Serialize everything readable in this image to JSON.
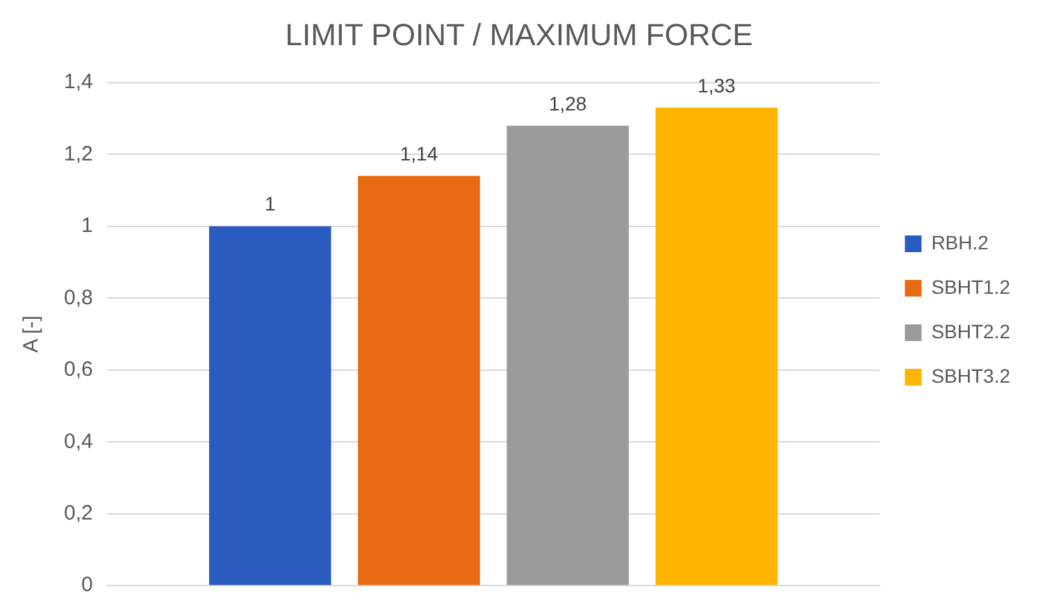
{
  "chart_data": {
    "type": "bar",
    "title": "LIMIT POINT / MAXIMUM FORCE",
    "ylabel": "A [-]",
    "categories": [
      null
    ],
    "series": [
      {
        "name": "RBH.2",
        "color": "#2a5cbf",
        "values": [
          1
        ],
        "value_labels": [
          "1"
        ]
      },
      {
        "name": "SBHT1.2",
        "color": "#e86a12",
        "values": [
          1.14
        ],
        "value_labels": [
          "1,14"
        ]
      },
      {
        "name": "SBHT2.2",
        "color": "#9b9b9b",
        "values": [
          1.28
        ],
        "value_labels": [
          "1,28"
        ]
      },
      {
        "name": "SBHT3.2",
        "color": "#ffb400",
        "values": [
          1.33
        ],
        "value_labels": [
          "1,33"
        ]
      }
    ],
    "ylim": [
      0,
      1.4
    ],
    "yticks": [
      0,
      {
        "value": 0.2,
        "label": "0,2"
      },
      {
        "value": 0.4,
        "label": "0,4"
      },
      {
        "value": 0.6,
        "label": "0,6"
      },
      {
        "value": 0.8,
        "label": "0,8"
      },
      1,
      {
        "value": 1.2,
        "label": "1,2"
      },
      {
        "value": 1.4,
        "label": "1,4"
      }
    ],
    "grid": "y",
    "legend": "right"
  }
}
